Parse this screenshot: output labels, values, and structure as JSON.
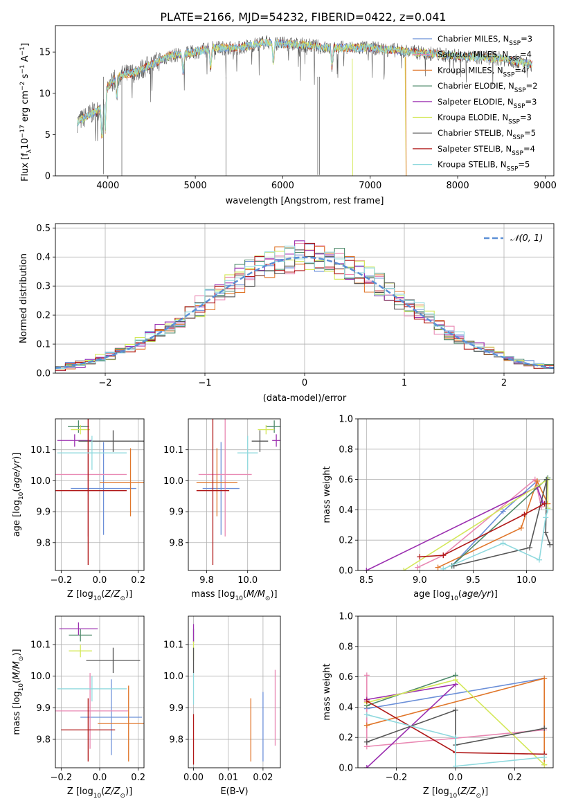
{
  "figure_title": "PLATE=2166, MJD=54232, FIBERID=0422, z=0.041",
  "colors": {
    "Chabrier MILES": "#6b8fd8",
    "Salpeter MILES": "#e989b3",
    "Kroupa MILES": "#e0762a",
    "Chabrier ELODIE": "#4e8a6a",
    "Salpeter ELODIE": "#9b2fb0",
    "Kroupa ELODIE": "#d4e85a",
    "Chabrier STELIB": "#555555",
    "Salpeter STELIB": "#b01818",
    "Kroupa STELIB": "#8fd9de",
    "gaussian": "#5b8fd6"
  },
  "chart_data": [
    {
      "id": "spectrum",
      "type": "line",
      "title": "PLATE=2166, MJD=54232, FIBERID=0422, z=0.041",
      "xlabel": "wavelength [Angstrom, rest frame]",
      "ylabel": "Flux [f_λ 10^-17 erg cm^-2 s^-1 A^-1]",
      "xlim": [
        3400,
        9100
      ],
      "ylim": [
        0,
        18.2
      ],
      "xticks": [
        4000,
        5000,
        6000,
        7000,
        8000,
        9000
      ],
      "yticks": [
        0,
        5,
        10,
        15
      ],
      "legend_position": "top-right",
      "legend": [
        {
          "main": "Chabrier MILES, N",
          "sub": "SSP",
          "tail": "=3"
        },
        {
          "main": "Salpeter MILES, N",
          "sub": "SSP",
          "tail": "=4"
        },
        {
          "main": "Kroupa MILES, N",
          "sub": "SSP",
          "tail": "=4"
        },
        {
          "main": "Chabrier ELODIE, N",
          "sub": "SSP",
          "tail": "=2"
        },
        {
          "main": "Salpeter ELODIE, N",
          "sub": "SSP",
          "tail": "=3"
        },
        {
          "main": "Kroupa ELODIE, N",
          "sub": "SSP",
          "tail": "=3"
        },
        {
          "main": "Chabrier STELIB, N",
          "sub": "SSP",
          "tail": "=5"
        },
        {
          "main": "Salpeter STELIB, N",
          "sub": "SSP",
          "tail": "=4"
        },
        {
          "main": "Kroupa STELIB, N",
          "sub": "SSP",
          "tail": "=5"
        }
      ],
      "continuum": {
        "x": [
          3650,
          3800,
          3900,
          4000,
          4100,
          4300,
          4500,
          4700,
          5000,
          5200,
          5500,
          5800,
          6000,
          6300,
          6500,
          7000,
          7500,
          8000,
          8500,
          8850
        ],
        "y": [
          6.5,
          7.5,
          8.0,
          10.8,
          12.0,
          12.5,
          13.5,
          14.5,
          15.0,
          15.5,
          15.5,
          16.2,
          16.0,
          15.8,
          15.5,
          15.5,
          15.0,
          14.5,
          14.2,
          13.5
        ]
      }
    },
    {
      "id": "residuals",
      "type": "histogram",
      "xlabel": "(data-model)/error",
      "ylabel": "Normed distribution",
      "xlim": [
        -2.5,
        2.5
      ],
      "ylim": [
        0,
        0.515
      ],
      "xticks": [
        -2,
        -1,
        0,
        1,
        2
      ],
      "yticks": [
        0.0,
        0.1,
        0.2,
        0.3,
        0.4,
        0.5
      ],
      "grid": true,
      "legend_position": "top-right",
      "legend": "𝒩(0, 1)",
      "bin_width": 0.1,
      "reference": {
        "name": "𝒩(0, 1)",
        "mean": 0,
        "sigma": 1,
        "style": "dashed"
      }
    },
    {
      "id": "age_vs_z",
      "type": "errorbar",
      "xlabel": "Z [log10(Z/Z⊙)]",
      "ylabel": "age [log10(age/yr)]",
      "xlim": [
        -0.23,
        0.23
      ],
      "ylim": [
        9.71,
        10.2
      ],
      "xticks": [
        -0.2,
        0.0,
        0.2
      ],
      "yticks": [
        9.8,
        9.9,
        10.0,
        10.1
      ],
      "grid": true,
      "points": [
        {
          "series": "Chabrier MILES",
          "x": 0.02,
          "xerr": 0.17,
          "y": 9.975,
          "yerr": 0.15
        },
        {
          "series": "Salpeter MILES",
          "x": -0.06,
          "xerr": 0.2,
          "y": 10.02,
          "yerr": 0.2
        },
        {
          "series": "Kroupa MILES",
          "x": 0.16,
          "xerr": 0.16,
          "y": 9.995,
          "yerr": 0.11
        },
        {
          "series": "Chabrier ELODIE",
          "x": -0.11,
          "xerr": 0.055,
          "y": 10.175,
          "yerr": 0.02
        },
        {
          "series": "Salpeter ELODIE",
          "x": -0.13,
          "xerr": 0.09,
          "y": 10.13,
          "yerr": 0.02
        },
        {
          "series": "Kroupa ELODIE",
          "x": -0.1,
          "xerr": 0.05,
          "y": 10.165,
          "yerr": 0.015
        },
        {
          "series": "Chabrier STELIB",
          "x": 0.07,
          "xerr": 0.18,
          "y": 10.128,
          "yerr": 0.035
        },
        {
          "series": "Salpeter STELIB",
          "x": -0.06,
          "xerr": 0.2,
          "y": 9.968,
          "yerr": 0.24
        },
        {
          "series": "Kroupa STELIB",
          "x": -0.04,
          "xerr": 0.18,
          "y": 10.09,
          "yerr": 0.055
        }
      ]
    },
    {
      "id": "age_vs_mass",
      "type": "errorbar",
      "xlabel": "mass [log10(M/M⊙)]",
      "ylabel": "",
      "xlim": [
        9.71,
        10.16
      ],
      "ylim": [
        9.71,
        10.2
      ],
      "xticks": [
        9.8,
        10.0
      ],
      "yticks": [
        9.8,
        9.9,
        10.0,
        10.1
      ],
      "grid": true,
      "points": [
        {
          "series": "Chabrier MILES",
          "x": 9.87,
          "xerr": 0.09,
          "y": 9.975,
          "yerr": 0.15
        },
        {
          "series": "Salpeter MILES",
          "x": 9.89,
          "xerr": 0.13,
          "y": 10.02,
          "yerr": 0.2
        },
        {
          "series": "Kroupa MILES",
          "x": 9.85,
          "xerr": 0.1,
          "y": 9.995,
          "yerr": 0.11
        },
        {
          "series": "Chabrier ELODIE",
          "x": 10.13,
          "xerr": 0.04,
          "y": 10.175,
          "yerr": 0.02
        },
        {
          "series": "Salpeter ELODIE",
          "x": 10.14,
          "xerr": 0.02,
          "y": 10.13,
          "yerr": 0.02
        },
        {
          "series": "Kroupa ELODIE",
          "x": 10.09,
          "xerr": 0.04,
          "y": 10.165,
          "yerr": 0.015
        },
        {
          "series": "Chabrier STELIB",
          "x": 10.06,
          "xerr": 0.04,
          "y": 10.128,
          "yerr": 0.035
        },
        {
          "series": "Salpeter STELIB",
          "x": 9.83,
          "xerr": 0.08,
          "y": 9.968,
          "yerr": 0.24
        },
        {
          "series": "Kroupa STELIB",
          "x": 10.0,
          "xerr": 0.05,
          "y": 10.09,
          "yerr": 0.055
        }
      ]
    },
    {
      "id": "weight_vs_age",
      "type": "line",
      "xlabel": "age [log10(age/yr)]",
      "ylabel": "mass weight",
      "xlim": [
        8.42,
        10.25
      ],
      "ylim": [
        0,
        1.0
      ],
      "xticks": [
        8.5,
        9.0,
        9.5,
        10.0
      ],
      "yticks": [
        0.0,
        0.2,
        0.4,
        0.6,
        0.8,
        1.0
      ],
      "grid": true,
      "series": [
        {
          "name": "Chabrier MILES",
          "x": [
            9.3,
            9.78,
            10.1
          ],
          "y": [
            0.03,
            0.39,
            0.59
          ]
        },
        {
          "name": "Salpeter MILES",
          "x": [
            8.98,
            9.22,
            10.08,
            10.14
          ],
          "y": [
            0.02,
            0.1,
            0.6,
            0.42
          ]
        },
        {
          "name": "Kroupa MILES",
          "x": [
            9.17,
            9.95,
            10.1,
            10.2
          ],
          "y": [
            0.02,
            0.28,
            0.59,
            0.44
          ]
        },
        {
          "name": "Chabrier ELODIE",
          "x": [
            9.3,
            10.2
          ],
          "y": [
            0.03,
            0.61
          ]
        },
        {
          "name": "Salpeter ELODIE",
          "x": [
            8.5,
            10.1,
            10.15
          ],
          "y": [
            0.0,
            0.55,
            0.45
          ]
        },
        {
          "name": "Kroupa ELODIE",
          "x": [
            8.85,
            10.2,
            10.2
          ],
          "y": [
            0.0,
            0.6,
            0.41
          ]
        },
        {
          "name": "Chabrier STELIB",
          "x": [
            9.32,
            10.03,
            10.19,
            10.18,
            10.22
          ],
          "y": [
            0.03,
            0.15,
            0.6,
            0.25,
            0.17
          ]
        },
        {
          "name": "Salpeter STELIB",
          "x": [
            9.0,
            9.22,
            9.98,
            10.17
          ],
          "y": [
            0.09,
            0.1,
            0.37,
            0.44
          ]
        },
        {
          "name": "Kroupa STELIB",
          "x": [
            9.22,
            9.78,
            10.12,
            10.18,
            10.2
          ],
          "y": [
            0.01,
            0.18,
            0.07,
            0.35,
            0.4
          ]
        }
      ]
    },
    {
      "id": "mass_vs_z",
      "type": "errorbar",
      "xlabel": "Z [log10(Z/Z⊙)]",
      "ylabel": "mass [log10(M/M⊙)]",
      "xlim": [
        -0.23,
        0.23
      ],
      "ylim": [
        9.71,
        10.19
      ],
      "xticks": [
        -0.2,
        0.0,
        0.2
      ],
      "yticks": [
        9.8,
        9.9,
        10.0,
        10.1
      ],
      "grid": true,
      "points": [
        {
          "series": "Chabrier MILES",
          "x": 0.06,
          "xerr": 0.16,
          "y": 9.87,
          "yerr": 0.12
        },
        {
          "series": "Salpeter MILES",
          "x": -0.05,
          "xerr": 0.2,
          "y": 9.89,
          "yerr": 0.12
        },
        {
          "series": "Kroupa MILES",
          "x": 0.15,
          "xerr": 0.16,
          "y": 9.85,
          "yerr": 0.12
        },
        {
          "series": "Chabrier ELODIE",
          "x": -0.1,
          "xerr": 0.06,
          "y": 10.13,
          "yerr": 0.02
        },
        {
          "series": "Salpeter ELODIE",
          "x": -0.11,
          "xerr": 0.1,
          "y": 10.15,
          "yerr": 0.02
        },
        {
          "series": "Kroupa ELODIE",
          "x": -0.1,
          "xerr": 0.06,
          "y": 10.08,
          "yerr": 0.02
        },
        {
          "series": "Chabrier STELIB",
          "x": 0.07,
          "xerr": 0.14,
          "y": 10.05,
          "yerr": 0.04
        },
        {
          "series": "Salpeter STELIB",
          "x": -0.06,
          "xerr": 0.14,
          "y": 9.83,
          "yerr": 0.1
        },
        {
          "series": "Kroupa STELIB",
          "x": -0.04,
          "xerr": 0.18,
          "y": 9.96,
          "yerr": 0.04
        }
      ]
    },
    {
      "id": "mass_vs_ebv",
      "type": "errorbar",
      "xlabel": "E(B-V)",
      "ylabel": "",
      "xlim": [
        -0.0015,
        0.025
      ],
      "ylim": [
        9.71,
        10.19
      ],
      "xticks": [
        0.0,
        0.01,
        0.02
      ],
      "yticks": [
        9.8,
        9.9,
        10.0,
        10.1
      ],
      "grid": true,
      "points": [
        {
          "series": "Chabrier MILES",
          "x": 0.02,
          "y": 9.84,
          "yerr": 0.11
        },
        {
          "series": "Salpeter MILES",
          "x": 0.0235,
          "y": 9.9,
          "yerr": 0.12
        },
        {
          "series": "Kroupa MILES",
          "x": 0.0165,
          "y": 9.83,
          "yerr": 0.1
        },
        {
          "series": "Chabrier ELODIE",
          "x": 0.0,
          "y": 10.13,
          "yerr": 0.02
        },
        {
          "series": "Salpeter ELODIE",
          "x": 0.0,
          "y": 10.135,
          "yerr": 0.03
        },
        {
          "series": "Kroupa ELODIE",
          "x": 0.0,
          "y": 10.08,
          "yerr": 0.03
        },
        {
          "series": "Chabrier STELIB",
          "x": 0.0,
          "y": 10.05,
          "yerr": 0.04
        },
        {
          "series": "Salpeter STELIB",
          "x": 0.0,
          "y": 9.8,
          "yerr": 0.08
        },
        {
          "series": "Kroupa STELIB",
          "x": 0.0,
          "y": 9.96,
          "yerr": 0.05
        }
      ]
    },
    {
      "id": "weight_vs_z",
      "type": "line",
      "xlabel": "Z [log10(Z/Z⊙)]",
      "ylabel": "mass weight",
      "xlim": [
        -0.33,
        0.33
      ],
      "ylim": [
        0,
        1.0
      ],
      "xticks": [
        -0.2,
        0.0,
        0.2
      ],
      "yticks": [
        0.0,
        0.2,
        0.4,
        0.6,
        0.8,
        1.0
      ],
      "grid": true,
      "series": [
        {
          "name": "Chabrier MILES",
          "x": [
            -0.3,
            0.3
          ],
          "y": [
            0.39,
            0.59
          ]
        },
        {
          "name": "Salpeter MILES",
          "x": [
            -0.3,
            -0.3,
            0.3
          ],
          "y": [
            0.61,
            0.14,
            0.25
          ]
        },
        {
          "name": "Kroupa MILES",
          "x": [
            -0.3,
            0.3,
            0.3
          ],
          "y": [
            0.28,
            0.59,
            0.02
          ]
        },
        {
          "name": "Chabrier ELODIE",
          "x": [
            -0.3,
            0.0
          ],
          "y": [
            0.41,
            0.61
          ]
        },
        {
          "name": "Salpeter ELODIE",
          "x": [
            -0.3,
            0.0,
            -0.3
          ],
          "y": [
            0.0,
            0.55,
            0.45
          ]
        },
        {
          "name": "Kroupa ELODIE",
          "x": [
            -0.3,
            0.0,
            0.3
          ],
          "y": [
            0.43,
            0.58,
            0.02
          ]
        },
        {
          "name": "Chabrier STELIB",
          "x": [
            -0.3,
            0.0,
            0.0,
            0.3
          ],
          "y": [
            0.17,
            0.38,
            0.15,
            0.26
          ]
        },
        {
          "name": "Salpeter STELIB",
          "x": [
            -0.3,
            0.0,
            0.3
          ],
          "y": [
            0.44,
            0.1,
            0.09
          ]
        },
        {
          "name": "Kroupa STELIB",
          "x": [
            -0.3,
            0.0,
            0.0,
            0.3
          ],
          "y": [
            0.35,
            0.2,
            0.01,
            0.07
          ]
        }
      ]
    }
  ]
}
